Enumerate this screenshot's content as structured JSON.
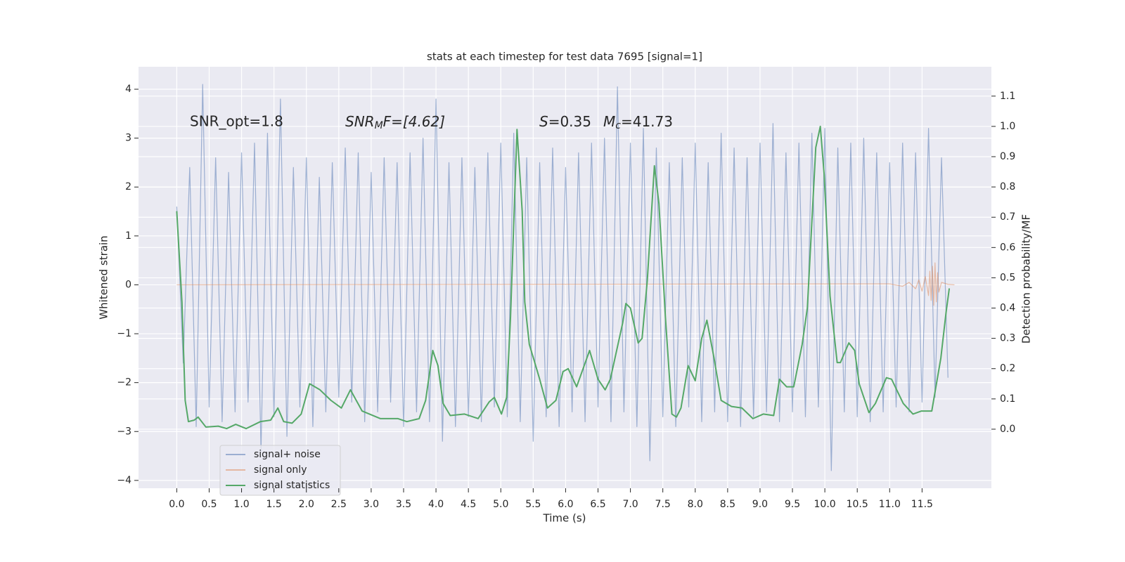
{
  "chart_data": {
    "type": "line",
    "title": "stats at each timestep for test data 7695 [signal=1]",
    "xlabel": "Time (s)",
    "ylabel": "Whitened strain",
    "y2label": "Detection probability/MF",
    "annotations": [
      {
        "text": "SNR_opt=1.8"
      },
      {
        "main": "SNR",
        "sub": "M",
        "rest": "F=[4.62]"
      },
      {
        "main": "S",
        "rest": "=0.35"
      },
      {
        "main": "M",
        "sub": "c",
        "rest": "=41.73"
      }
    ],
    "xlim": [
      -0.59,
      12.57
    ],
    "ylim": [
      -4.16,
      4.46
    ],
    "y2lim": [
      -0.195,
      1.197
    ],
    "xticks": [
      {
        "value": 0,
        "label": "0.0"
      },
      0.5,
      {
        "value": 1,
        "label": "1.0"
      },
      1.5,
      {
        "value": 2,
        "label": "2.0"
      },
      2.5,
      {
        "value": 3,
        "label": "3.0"
      },
      3.5,
      {
        "value": 4,
        "label": "4.0"
      },
      4.5,
      {
        "value": 5,
        "label": "5.0"
      },
      5.5,
      {
        "value": 6,
        "label": "6.0"
      },
      6.5,
      {
        "value": 7,
        "label": "7.0"
      },
      7.5,
      {
        "value": 8,
        "label": "8.0"
      },
      8.5,
      {
        "value": 9,
        "label": "9.0"
      },
      9.5,
      {
        "value": 10,
        "label": "10.0"
      },
      10.5,
      {
        "value": 11,
        "label": "11.0"
      },
      11.5
    ],
    "yticks": [
      {
        "value": -4,
        "label": "−4"
      },
      {
        "value": -3,
        "label": "−3"
      },
      {
        "value": -2,
        "label": "−2"
      },
      {
        "value": -1,
        "label": "−1"
      },
      0,
      1,
      2,
      3,
      4
    ],
    "y2ticks": [
      {
        "value": 0,
        "label": "0.0"
      },
      0.1,
      0.2,
      0.3,
      0.4,
      0.5,
      0.6,
      0.7,
      0.8,
      0.9,
      {
        "value": 1,
        "label": "1.0"
      },
      1.1
    ],
    "grid": true,
    "legend": "lower left",
    "x": [
      0,
      0.1,
      0.2,
      0.3,
      0.4,
      0.5,
      0.6,
      0.7,
      0.8,
      0.9,
      1,
      1.1,
      1.2,
      1.3,
      1.4,
      1.5,
      1.6,
      1.7,
      1.8,
      1.9,
      2,
      2.1,
      2.2,
      2.3,
      2.4,
      2.5,
      2.6,
      2.7,
      2.8,
      2.9,
      3,
      3.1,
      3.2,
      3.3,
      3.4,
      3.5,
      3.6,
      3.7,
      3.8,
      3.9,
      4,
      4.1,
      4.2,
      4.3,
      4.4,
      4.5,
      4.6,
      4.7,
      4.8,
      4.9,
      5,
      5.1,
      5.2,
      5.3,
      5.4,
      5.5,
      5.6,
      5.7,
      5.8,
      5.9,
      6,
      6.1,
      6.2,
      6.3,
      6.4,
      6.5,
      6.6,
      6.7,
      6.8,
      6.9,
      7,
      7.1,
      7.2,
      7.3,
      7.4,
      7.5,
      7.6,
      7.7,
      7.8,
      7.9,
      8,
      8.1,
      8.2,
      8.3,
      8.4,
      8.5,
      8.6,
      8.7,
      8.8,
      8.9,
      9,
      9.1,
      9.2,
      9.3,
      9.4,
      9.5,
      9.6,
      9.7,
      9.8,
      9.9,
      10,
      10.1,
      10.2,
      10.3,
      10.4,
      10.5,
      10.6,
      10.7,
      10.8,
      10.9,
      11,
      11.1,
      11.2,
      11.3,
      11.4,
      11.5,
      11.6,
      11.7,
      11.8,
      11.9
    ],
    "series": [
      {
        "name": "signal+ noise",
        "color": "#4c72b0",
        "alpha": 0.5,
        "values": [
          1.6,
          -1.6,
          2.4,
          -2.9,
          4.1,
          -2.5,
          2.6,
          -2.8,
          2.3,
          -2.6,
          2.7,
          -2.4,
          2.9,
          -3.4,
          3.1,
          -2.7,
          3.8,
          -3.1,
          2.4,
          -2.5,
          2.6,
          -2.9,
          2.2,
          -2.6,
          2.5,
          -2.3,
          2.8,
          -2.4,
          2.7,
          -2.8,
          2.3,
          -2.6,
          2.6,
          -2.4,
          2.5,
          -2.9,
          2.7,
          -2.6,
          3.0,
          -2.8,
          3.8,
          -3.2,
          2.5,
          -2.9,
          2.6,
          -2.7,
          2.4,
          -2.8,
          2.7,
          -2.5,
          2.9,
          -2.7,
          3.1,
          -2.8,
          2.6,
          -3.2,
          2.5,
          -2.7,
          2.8,
          -2.9,
          2.4,
          -2.6,
          2.7,
          -2.8,
          2.9,
          -2.5,
          3.0,
          -2.8,
          4.05,
          -2.6,
          2.9,
          -2.9,
          3.2,
          -3.6,
          2.8,
          -2.7,
          2.5,
          -2.9,
          2.6,
          -2.5,
          2.9,
          -2.8,
          2.5,
          -2.6,
          3.1,
          -2.8,
          2.8,
          -2.9,
          2.6,
          -2.7,
          2.9,
          -2.6,
          3.3,
          -2.8,
          2.7,
          -2.6,
          2.9,
          -2.7,
          3.1,
          -2.5,
          3.2,
          -3.8,
          2.8,
          -2.6,
          2.9,
          -2.7,
          3.0,
          -2.8,
          2.7,
          -2.6,
          2.5,
          -2.5,
          2.9,
          -2.6,
          2.7,
          -2.4,
          3.2,
          -2.3,
          2.6,
          -1.9
        ]
      },
      {
        "name": "signal only",
        "color": "#dd8452",
        "alpha": 0.5,
        "x": [
          0,
          11.0,
          11.2,
          11.3,
          11.4,
          11.45,
          11.5,
          11.55,
          11.6,
          11.62,
          11.64,
          11.66,
          11.68,
          11.7,
          11.72,
          11.74,
          11.76,
          11.8,
          11.9,
          12.0
        ],
        "values": [
          0,
          0.02,
          -0.03,
          0.05,
          -0.08,
          0.1,
          -0.13,
          0.17,
          -0.22,
          0.28,
          -0.32,
          0.38,
          -0.42,
          0.45,
          -0.35,
          0.25,
          -0.15,
          0.05,
          0.01,
          0
        ]
      },
      {
        "name": "signal statistics",
        "color": "#55a868",
        "alpha": 1,
        "axis": "y2",
        "x": [
          0,
          0.08,
          0.13,
          0.18,
          0.27,
          0.33,
          0.45,
          0.64,
          0.77,
          0.91,
          1.07,
          1.29,
          1.45,
          1.56,
          1.65,
          1.78,
          1.92,
          2.05,
          2.21,
          2.38,
          2.54,
          2.68,
          2.86,
          3.14,
          3.41,
          3.55,
          3.74,
          3.84,
          3.95,
          4.03,
          4.11,
          4.22,
          4.44,
          4.65,
          4.82,
          4.9,
          5.01,
          5.09,
          5.15,
          5.25,
          5.33,
          5.37,
          5.44,
          5.51,
          5.6,
          5.72,
          5.85,
          5.96,
          6.04,
          6.17,
          6.37,
          6.5,
          6.61,
          6.69,
          6.88,
          6.93,
          7.0,
          7.12,
          7.18,
          7.26,
          7.37,
          7.44,
          7.54,
          7.64,
          7.71,
          7.78,
          7.89,
          8.0,
          8.1,
          8.18,
          8.29,
          8.4,
          8.56,
          8.72,
          8.89,
          9.05,
          9.21,
          9.3,
          9.41,
          9.52,
          9.65,
          9.73,
          9.86,
          9.93,
          9.99,
          10.08,
          10.19,
          10.24,
          10.37,
          10.46,
          10.53,
          10.68,
          10.78,
          10.95,
          11.03,
          11.21,
          11.36,
          11.49,
          11.65,
          11.79,
          11.87,
          11.92
        ],
        "values": [
          0.72,
          0.42,
          0.095,
          0.025,
          0.03,
          0.04,
          0.007,
          0.01,
          0.002,
          0.016,
          0.002,
          0.025,
          0.03,
          0.07,
          0.025,
          0.02,
          0.05,
          0.15,
          0.13,
          0.095,
          0.07,
          0.13,
          0.06,
          0.035,
          0.035,
          0.025,
          0.035,
          0.095,
          0.26,
          0.21,
          0.085,
          0.045,
          0.05,
          0.035,
          0.09,
          0.105,
          0.05,
          0.105,
          0.37,
          0.99,
          0.72,
          0.42,
          0.28,
          0.23,
          0.165,
          0.07,
          0.095,
          0.19,
          0.2,
          0.14,
          0.26,
          0.165,
          0.13,
          0.165,
          0.35,
          0.415,
          0.4,
          0.285,
          0.3,
          0.49,
          0.87,
          0.745,
          0.37,
          0.05,
          0.04,
          0.07,
          0.21,
          0.16,
          0.3,
          0.36,
          0.235,
          0.095,
          0.075,
          0.07,
          0.035,
          0.05,
          0.045,
          0.165,
          0.14,
          0.14,
          0.28,
          0.4,
          0.93,
          1.0,
          0.84,
          0.44,
          0.22,
          0.22,
          0.285,
          0.26,
          0.15,
          0.055,
          0.085,
          0.17,
          0.165,
          0.085,
          0.05,
          0.06,
          0.06,
          0.235,
          0.385,
          0.465
        ]
      }
    ]
  }
}
